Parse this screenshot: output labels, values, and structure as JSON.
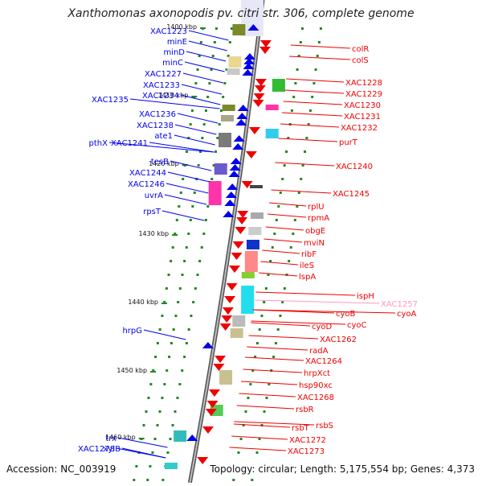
{
  "header": {
    "title": "Xanthomonas axonopodis pv. citri str. 306, complete genome"
  },
  "footer": {
    "accession": "Accession: NC_003919",
    "summary": "Topology: circular; Length: 5,175,554 bp; Genes: 4,373"
  },
  "colors": {
    "plus_strand": "#0000ee",
    "minus_strand": "#ee0000",
    "highlight": "#ff99bb",
    "backbone": "#888888",
    "tick": "#228822"
  },
  "scale_labels": [
    "1400 kbp",
    "1410 kbp",
    "1420 kbp",
    "1430 kbp",
    "1440 kbp",
    "1450 kbp",
    "1460 kbp"
  ],
  "left_genes": [
    "XAC1223",
    "minE",
    "minD",
    "minC",
    "XAC1227",
    "XAC1233",
    "XAC1234",
    "XAC1235",
    "XAC1236",
    "XAC1238",
    "ate1",
    "pthX",
    "XAC1241",
    "tesB",
    "XAC1244",
    "XAC1246",
    "uvrA",
    "rpsT",
    "hrpG",
    "xylB",
    "trx",
    "XAC1278"
  ],
  "right_genes": [
    "colR",
    "colS",
    "XAC1228",
    "XAC1229",
    "XAC1230",
    "XAC1231",
    "XAC1232",
    "purT",
    "XAC1240",
    "XAC1245",
    "rplU",
    "rpmA",
    "obgE",
    "mviN",
    "ribF",
    "ileS",
    "lspA",
    "ispH",
    "XAC1257",
    "cyoA",
    "cyoB",
    "cyoC",
    "cyoD",
    "XAC1262",
    "radA",
    "XAC1264",
    "hrpXct",
    "hsp90xc",
    "XAC1268",
    "rsbR",
    "rsbS",
    "rsbT",
    "XAC1272",
    "XAC1273"
  ]
}
